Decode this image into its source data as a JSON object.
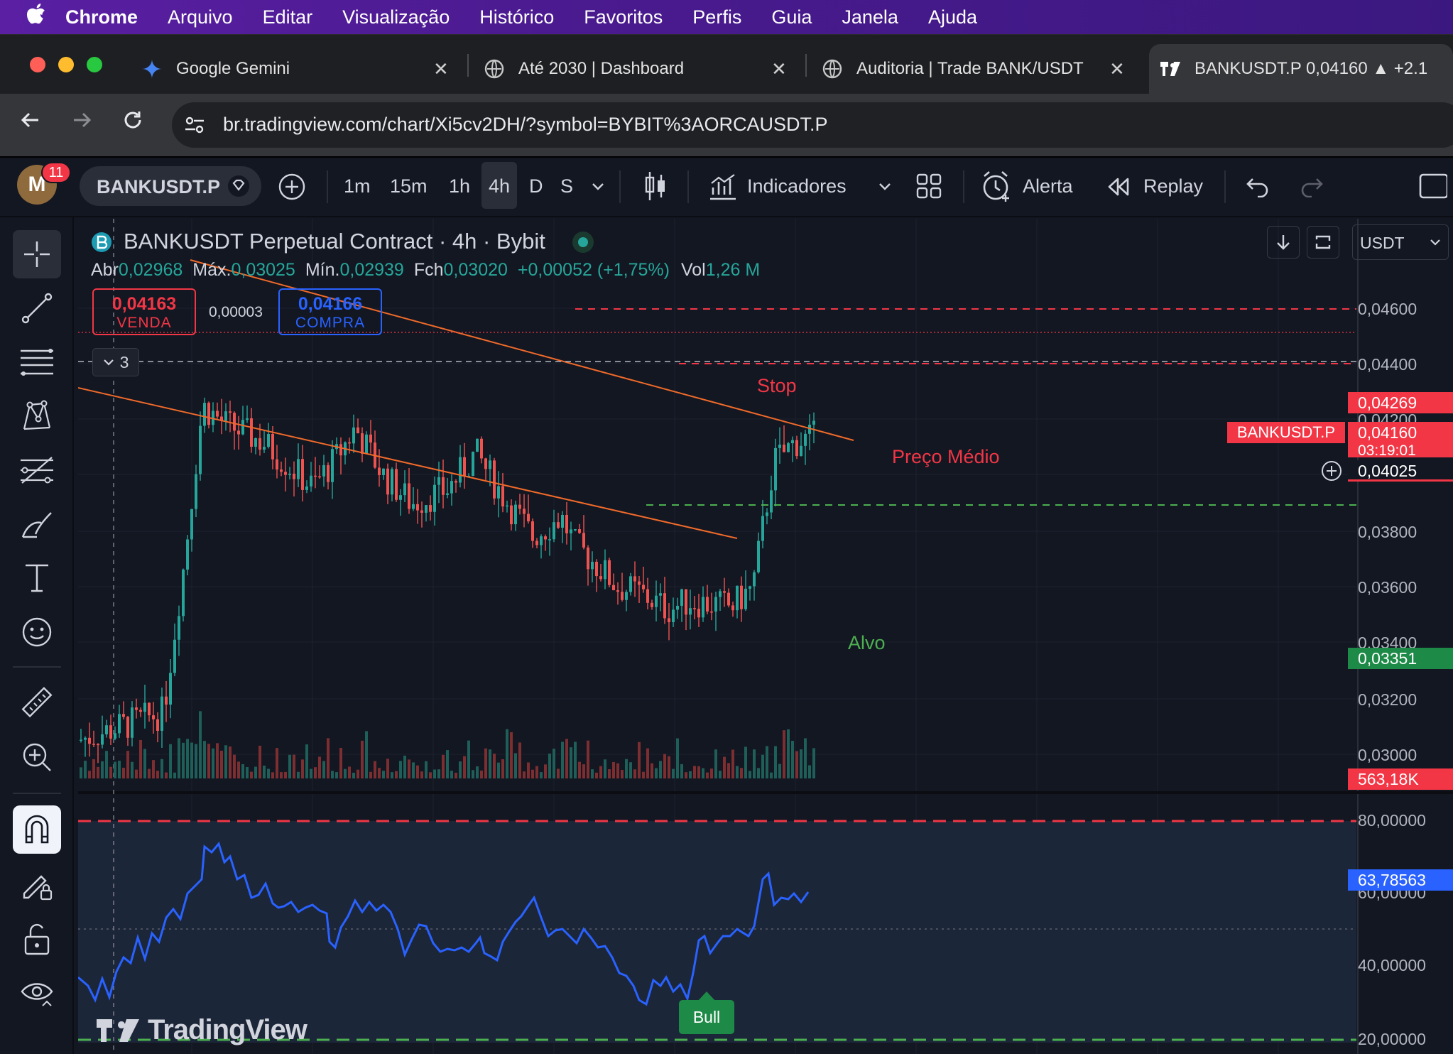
{
  "menubar": {
    "apple": "",
    "items": [
      "Chrome",
      "Arquivo",
      "Editar",
      "Visualização",
      "Histórico",
      "Favoritos",
      "Perfis",
      "Guia",
      "Janela",
      "Ajuda"
    ]
  },
  "tabs": [
    {
      "title": "Google Gemini",
      "icon": "gemini-icon"
    },
    {
      "title": "Até 2030 | Dashboard",
      "icon": "globe-icon"
    },
    {
      "title": "Auditoria | Trade BANK/USDT",
      "icon": "globe-icon"
    },
    {
      "title": "BANKUSDT.P 0,04160 ▲ +2.1",
      "icon": "tradingview-icon",
      "active": true
    }
  ],
  "address": {
    "url": "br.tradingview.com/chart/Xi5cv2DH/?symbol=BYBIT%3AORCAUSDT.P"
  },
  "toolbar": {
    "avatar_letter": "M",
    "notifications": "11",
    "symbol": "BANKUSDT.P",
    "intervals": [
      "1m",
      "15m",
      "1h",
      "4h",
      "D",
      "S"
    ],
    "active_interval": "4h",
    "indicators": "Indicadores",
    "alert": "Alerta",
    "replay": "Replay"
  },
  "chart": {
    "title": "BANKUSDT Perpetual Contract · 4h · Bybit",
    "ohlc": {
      "open_label": "Abr",
      "open": "0,02968",
      "high_label": "Máx.",
      "high": "0,03025",
      "low_label": "Mín.",
      "low": "0,02939",
      "close_label": "Fch",
      "close": "0,03020",
      "change": "+0,00052 (+1,75%)",
      "vol_label": "Vol",
      "vol": "1,26 M"
    },
    "sell": {
      "price": "0,04163",
      "label": "VENDA"
    },
    "spread": "0,00003",
    "buy": {
      "price": "0,04166",
      "label": "COMPRA"
    },
    "collapsed_count": "3",
    "currency": "USDT",
    "annotations": {
      "stop": "Stop",
      "avg": "Preço Médio",
      "target": "Alvo",
      "bull": "Bull"
    },
    "price_labels": {
      "stop": "0,04269",
      "symbol_tag": "BANKUSDT.P",
      "last": "0,04160",
      "countdown": "03:19:01",
      "avg": "0,04025",
      "target": "0,03351",
      "volume": "563,18K",
      "rsi": "63,78563"
    },
    "price_axis": [
      "0,04600",
      "0,04400",
      "0,04200",
      "0,03800",
      "0,03600",
      "0,03400",
      "0,03200",
      "0,03000"
    ],
    "rsi_axis": [
      "80,00000",
      "60,00000",
      "40,00000",
      "20,00000"
    ],
    "watermark": "TradingView"
  },
  "colors": {
    "up": "#26a69a",
    "down": "#ef5350",
    "trend": "#f06a2a",
    "rsi": "#2962ff",
    "stop": "#f23645",
    "target": "#4caf50",
    "bg": "#131722"
  }
}
